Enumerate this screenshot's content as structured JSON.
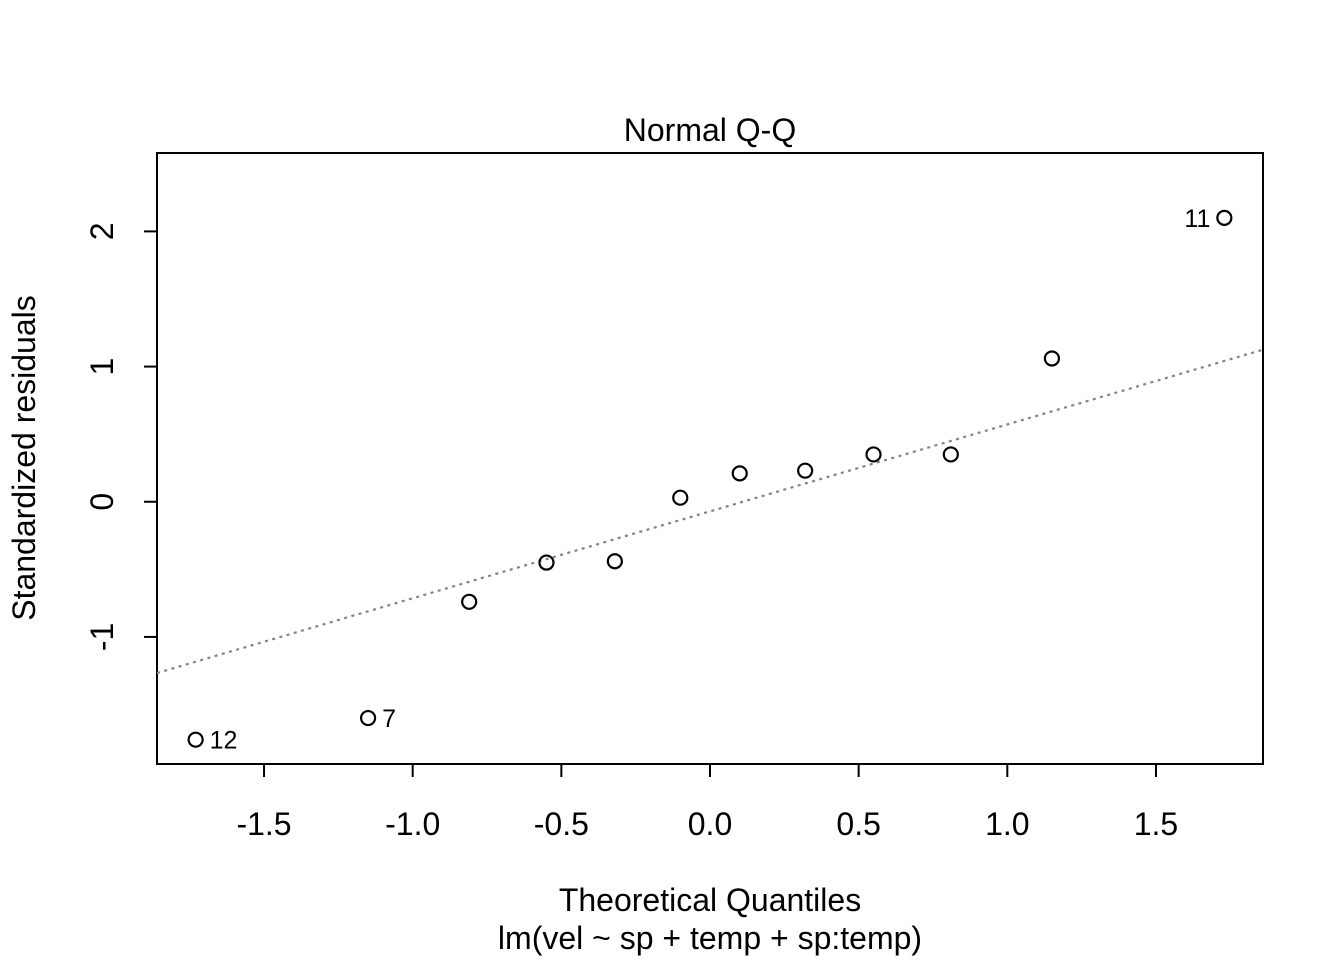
{
  "chart_data": {
    "type": "scatter",
    "title": "Normal Q-Q",
    "xlabel": "Theoretical Quantiles",
    "xlabel_sub": "lm(vel ~ sp + temp + sp:temp)",
    "ylabel": "Standardized residuals",
    "xlim": [
      -1.86,
      1.86
    ],
    "ylim": [
      -1.94,
      2.58
    ],
    "grid": false,
    "x_ticks": [
      {
        "value": -1.5,
        "label": "-1.5"
      },
      {
        "value": -1.0,
        "label": "-1.0"
      },
      {
        "value": -0.5,
        "label": "-0.5"
      },
      {
        "value": 0.0,
        "label": "0.0"
      },
      {
        "value": 0.5,
        "label": "0.5"
      },
      {
        "value": 1.0,
        "label": "1.0"
      },
      {
        "value": 1.5,
        "label": "1.5"
      }
    ],
    "y_ticks": [
      {
        "value": -1,
        "label": "-1"
      },
      {
        "value": 0,
        "label": "0"
      },
      {
        "value": 1,
        "label": "1"
      },
      {
        "value": 2,
        "label": "2"
      }
    ],
    "points": [
      {
        "x": -1.73,
        "y": -1.76,
        "label": "12",
        "label_side": "right"
      },
      {
        "x": -1.15,
        "y": -1.6,
        "label": "7",
        "label_side": "right"
      },
      {
        "x": -0.81,
        "y": -0.74
      },
      {
        "x": -0.55,
        "y": -0.45
      },
      {
        "x": -0.32,
        "y": -0.44
      },
      {
        "x": -0.1,
        "y": 0.03
      },
      {
        "x": 0.1,
        "y": 0.21
      },
      {
        "x": 0.32,
        "y": 0.23
      },
      {
        "x": 0.55,
        "y": 0.35
      },
      {
        "x": 0.81,
        "y": 0.35
      },
      {
        "x": 1.15,
        "y": 1.06
      },
      {
        "x": 1.73,
        "y": 2.1,
        "label": "11",
        "label_side": "left"
      }
    ],
    "reference_line": {
      "type": "qqline",
      "slope": 0.643,
      "intercept": -0.071,
      "style": "dotted",
      "color": "#848484"
    },
    "colors": {
      "points": "#000000",
      "axis": "#000000",
      "text": "#000000",
      "background": "#ffffff"
    }
  }
}
